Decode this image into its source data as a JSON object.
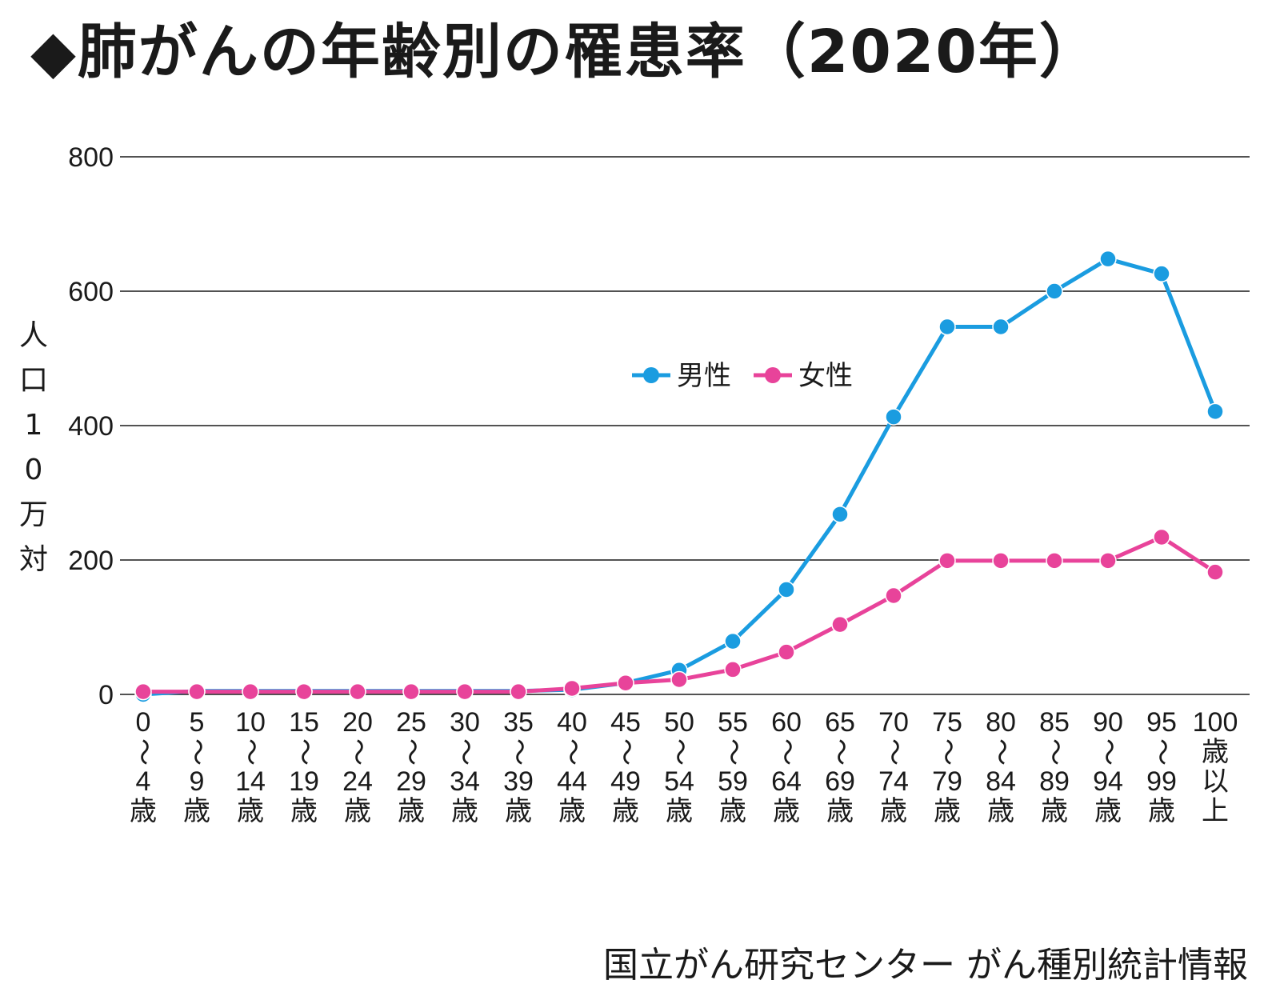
{
  "title": "◆肺がんの年齢別の罹患率（2020年）",
  "source": "国立がん研究センター がん種別統計情報",
  "colors": {
    "male": "#1a9ce0",
    "female": "#e8439a",
    "grid": "#1a1a1a"
  },
  "chart_data": {
    "type": "line",
    "ylabel": "人口10万対",
    "ylim": [
      0,
      800
    ],
    "yticks": [
      "0",
      "200",
      "400",
      "600",
      "800"
    ],
    "legend_position": "center",
    "categories": [
      [
        "0",
        "〜",
        "4",
        "歳"
      ],
      [
        "5",
        "〜",
        "9",
        "歳"
      ],
      [
        "10",
        "〜",
        "14",
        "歳"
      ],
      [
        "15",
        "〜",
        "19",
        "歳"
      ],
      [
        "20",
        "〜",
        "24",
        "歳"
      ],
      [
        "25",
        "〜",
        "29",
        "歳"
      ],
      [
        "30",
        "〜",
        "34",
        "歳"
      ],
      [
        "35",
        "〜",
        "39",
        "歳"
      ],
      [
        "40",
        "〜",
        "44",
        "歳"
      ],
      [
        "45",
        "〜",
        "49",
        "歳"
      ],
      [
        "50",
        "〜",
        "54",
        "歳"
      ],
      [
        "55",
        "〜",
        "59",
        "歳"
      ],
      [
        "60",
        "〜",
        "64",
        "歳"
      ],
      [
        "65",
        "〜",
        "69",
        "歳"
      ],
      [
        "70",
        "〜",
        "74",
        "歳"
      ],
      [
        "75",
        "〜",
        "79",
        "歳"
      ],
      [
        "80",
        "〜",
        "84",
        "歳"
      ],
      [
        "85",
        "〜",
        "89",
        "歳"
      ],
      [
        "90",
        "〜",
        "94",
        "歳"
      ],
      [
        "95",
        "〜",
        "99",
        "歳"
      ],
      [
        "100",
        "歳",
        "以",
        "上"
      ]
    ],
    "series": [
      {
        "name": "男性",
        "color": "#1a9ce0",
        "values": [
          0,
          5,
          5,
          5,
          5,
          5,
          5,
          5,
          7,
          17,
          36,
          79,
          156,
          268,
          413,
          547,
          547,
          600,
          648,
          626,
          421
        ]
      },
      {
        "name": "女性",
        "color": "#e8439a",
        "values": [
          4,
          4,
          4,
          4,
          4,
          4,
          4,
          4,
          9,
          17,
          22,
          37,
          63,
          104,
          147,
          199,
          199,
          199,
          199,
          234,
          182
        ]
      }
    ]
  }
}
